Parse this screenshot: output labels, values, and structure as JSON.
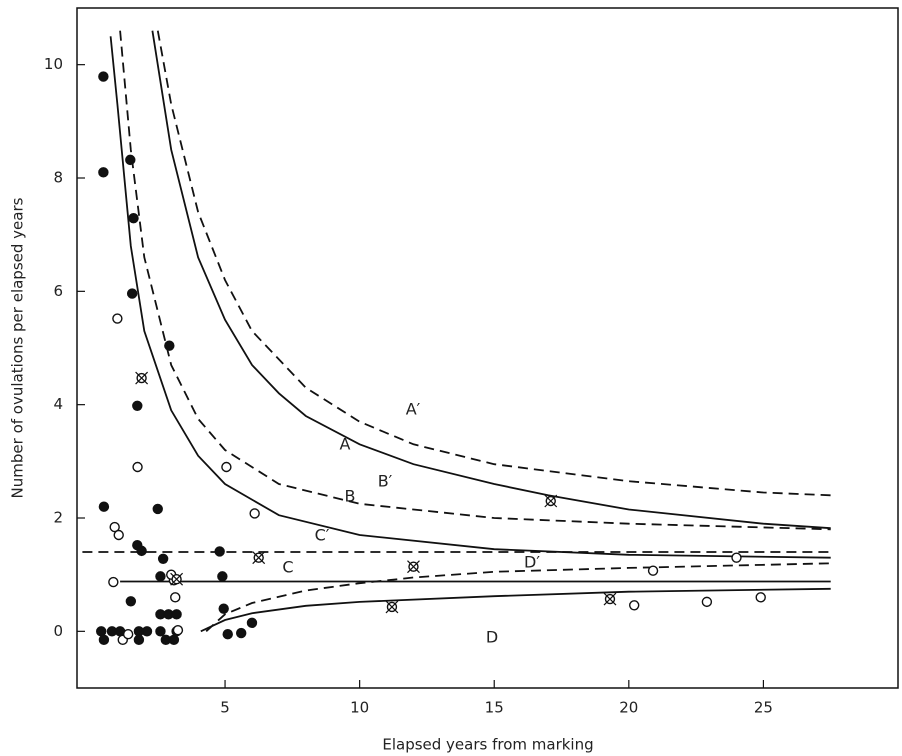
{
  "chart_data": {
    "type": "scatter",
    "x_label": "Elapsed years from marking",
    "y_label": "Number of ovulations per elapsed years",
    "xlim": [
      -0.5,
      30
    ],
    "ylim": [
      -1,
      11
    ],
    "xticks": [
      5,
      10,
      15,
      20,
      25
    ],
    "yticks": [
      0,
      2,
      4,
      6,
      8,
      10
    ],
    "color": "#111111",
    "lines": [
      {
        "name": "A",
        "dash": false,
        "x": [
          2.3,
          3,
          4,
          5,
          6,
          7,
          8,
          10,
          12,
          15,
          17,
          20,
          25,
          27.5
        ],
        "values": [
          10.6,
          8.5,
          6.6,
          5.5,
          4.7,
          4.2,
          3.8,
          3.3,
          2.95,
          2.6,
          2.4,
          2.15,
          1.9,
          1.82
        ]
      },
      {
        "name": "A′",
        "dash": true,
        "x": [
          2.5,
          3,
          4,
          5,
          6,
          8,
          10,
          12,
          15,
          20,
          25,
          27.5
        ],
        "values": [
          10.6,
          9.3,
          7.4,
          6.2,
          5.3,
          4.3,
          3.7,
          3.3,
          2.95,
          2.65,
          2.45,
          2.4
        ]
      },
      {
        "name": "B",
        "dash": false,
        "x": [
          0.75,
          1,
          1.5,
          2,
          3,
          4,
          5,
          7,
          10,
          15,
          20,
          27.5
        ],
        "values": [
          10.5,
          9.3,
          6.8,
          5.3,
          3.9,
          3.1,
          2.6,
          2.05,
          1.7,
          1.45,
          1.35,
          1.3
        ]
      },
      {
        "name": "B′",
        "dash": true,
        "x": [
          1.1,
          1.5,
          2,
          3,
          4,
          5,
          7,
          10,
          15,
          20,
          27.5
        ],
        "values": [
          10.6,
          8.5,
          6.6,
          4.7,
          3.75,
          3.2,
          2.6,
          2.25,
          2.0,
          1.9,
          1.8
        ]
      },
      {
        "name": "C",
        "dash": false,
        "x": [
          1.1,
          27.5
        ],
        "values": [
          0.88,
          0.88
        ]
      },
      {
        "name": "C′",
        "dash": true,
        "x": [
          -0.3,
          27.5
        ],
        "values": [
          1.4,
          1.4
        ]
      },
      {
        "name": "D",
        "dash": false,
        "x": [
          4.1,
          5,
          6,
          8,
          10,
          15,
          20,
          27.5
        ],
        "values": [
          0,
          0.2,
          0.32,
          0.45,
          0.52,
          0.62,
          0.7,
          0.75
        ]
      },
      {
        "name": "D′",
        "dash": true,
        "x": [
          4.3,
          5,
          6,
          8,
          10,
          12,
          15,
          20,
          27.5
        ],
        "values": [
          0,
          0.3,
          0.5,
          0.72,
          0.85,
          0.95,
          1.05,
          1.12,
          1.2
        ]
      }
    ],
    "points": [
      {
        "marker": "filled",
        "x": [
          0.48,
          0.48,
          1.48,
          1.6,
          1.55,
          1.74,
          0.5,
          1.74,
          1.9,
          2.5,
          2.93,
          1.5,
          2.7,
          2.6,
          2.6,
          2.9,
          3.2,
          0.4,
          0.5,
          0.8,
          1.1,
          1.8,
          1.8,
          2.1,
          2.6,
          2.8,
          3.1,
          3.2,
          4.8,
          4.9,
          4.95,
          5.1,
          5.6,
          6.0
        ],
        "values": [
          9.79,
          8.1,
          8.32,
          7.29,
          5.96,
          3.98,
          2.2,
          1.52,
          1.42,
          2.16,
          5.04,
          0.53,
          1.28,
          0.97,
          0.3,
          0.3,
          0.3,
          0,
          -0.15,
          0,
          0,
          0,
          -0.15,
          0,
          0,
          -0.15,
          -0.15,
          0,
          1.41,
          0.97,
          0.4,
          -0.05,
          -0.03,
          0.15
        ]
      },
      {
        "marker": "open",
        "x": [
          1.0,
          1.75,
          0.9,
          1.05,
          0.85,
          1.2,
          1.4,
          3.1,
          3.0,
          3.15,
          3.25,
          5.05,
          6.1,
          20.2,
          22.9,
          24.9,
          20.9,
          24.0
        ],
        "values": [
          5.52,
          2.9,
          1.84,
          1.7,
          0.87,
          -0.15,
          -0.05,
          0.9,
          1.0,
          0.6,
          0.02,
          2.9,
          2.08,
          0.46,
          0.52,
          0.6,
          1.07,
          1.3
        ]
      },
      {
        "marker": "crossed",
        "x": [
          1.9,
          3.2,
          6.25,
          11.2,
          12.0,
          17.1,
          19.3
        ],
        "values": [
          4.47,
          0.92,
          1.3,
          0.43,
          1.14,
          2.3,
          0.57
        ]
      }
    ]
  }
}
